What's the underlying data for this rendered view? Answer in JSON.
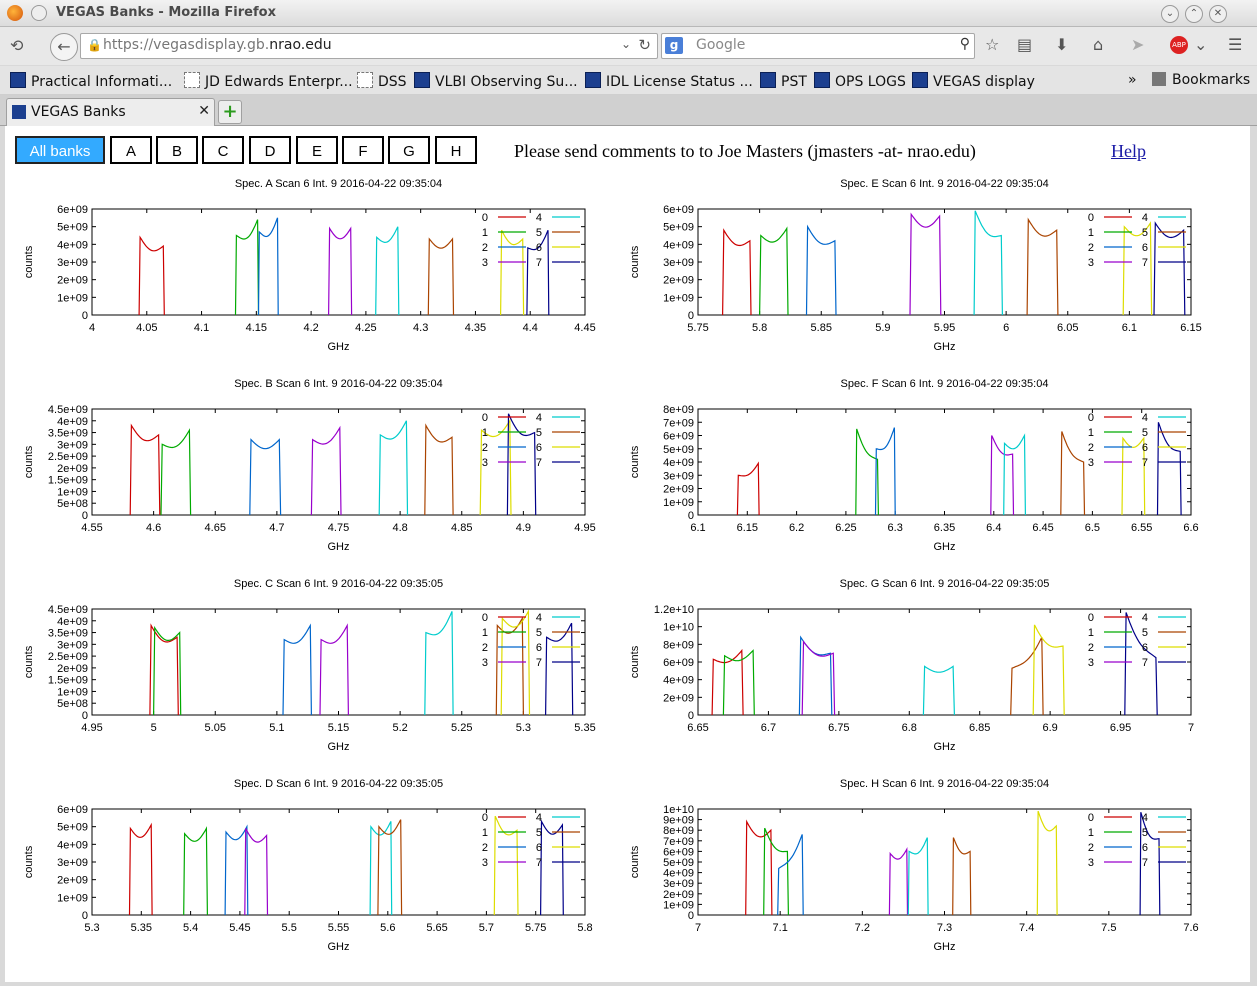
{
  "window": {
    "title": "VEGAS Banks - Mozilla Firefox"
  },
  "navbar": {
    "url_prefix": "https://vegasdisplay.gb.",
    "url_domain": "nrao.edu",
    "search_placeholder": "Google"
  },
  "bookmarks": [
    {
      "label": "Practical Informati...",
      "icon": "nrao"
    },
    {
      "label": "JD Edwards Enterpr...",
      "icon": "blank"
    },
    {
      "label": "DSS",
      "icon": "blank"
    },
    {
      "label": "VLBI Observing Su...",
      "icon": "nrao"
    },
    {
      "label": "IDL License Status ...",
      "icon": "nrao"
    },
    {
      "label": "PST",
      "icon": "nrao"
    },
    {
      "label": "OPS LOGS",
      "icon": "nrao"
    },
    {
      "label": "VEGAS display",
      "icon": "nrao"
    }
  ],
  "bookmarks_overflow": "»",
  "bookmarks_menu": "Bookmarks",
  "tab": {
    "label": "VEGAS Banks"
  },
  "bank_buttons": [
    "All banks",
    "A",
    "B",
    "C",
    "D",
    "E",
    "F",
    "G",
    "H"
  ],
  "active_bank": "All banks",
  "comments": "Please send comments to to Joe Masters (jmasters -at- nrao.edu)",
  "help_label": "Help",
  "colors": [
    "#cc0000",
    "#00aa00",
    "#0066cc",
    "#9900cc",
    "#00cccc",
    "#aa4400",
    "#dddd00",
    "#000088"
  ],
  "chart_data": [
    {
      "type": "line",
      "title": "Spec. A Scan 6 Int. 9   2016-04-22 09:35:04",
      "xlabel": "GHz",
      "ylabel": "counts",
      "xlim": [
        4.0,
        4.45
      ],
      "ylim": [
        0,
        6000000000.0
      ],
      "xticks": [
        "4",
        "4.05",
        "4.1",
        "4.15",
        "4.2",
        "4.25",
        "4.3",
        "4.35",
        "4.4",
        "4.45"
      ],
      "yticks": [
        "0",
        "1e+09",
        "2e+09",
        "3e+09",
        "4e+09",
        "5e+09",
        "6e+09"
      ],
      "legend": [
        "0",
        "1",
        "2",
        "3",
        "4",
        "5",
        "6",
        "7"
      ],
      "series": [
        {
          "name": "0",
          "start": 4.043,
          "end": 4.066,
          "lvl_start": 4400000000.0,
          "lvl_end": 3900000000.0
        },
        {
          "name": "1",
          "start": 4.131,
          "end": 4.152,
          "lvl_start": 4500000000.0,
          "lvl_end": 5400000000.0
        },
        {
          "name": "2",
          "start": 4.152,
          "end": 4.17,
          "lvl_start": 4700000000.0,
          "lvl_end": 5500000000.0
        },
        {
          "name": "3",
          "start": 4.216,
          "end": 4.237,
          "lvl_start": 4900000000.0,
          "lvl_end": 4900000000.0
        },
        {
          "name": "4",
          "start": 4.259,
          "end": 4.28,
          "lvl_start": 4400000000.0,
          "lvl_end": 5000000000.0
        },
        {
          "name": "5",
          "start": 4.307,
          "end": 4.33,
          "lvl_start": 4300000000.0,
          "lvl_end": 4300000000.0
        },
        {
          "name": "6",
          "start": 4.373,
          "end": 4.394,
          "lvl_start": 4800000000.0,
          "lvl_end": 4300000000.0
        },
        {
          "name": "7",
          "start": 4.397,
          "end": 4.417,
          "lvl_start": 3800000000.0,
          "lvl_end": 4800000000.0
        }
      ]
    },
    {
      "type": "line",
      "title": "Spec. E Scan 6 Int. 9   2016-04-22 09:35:04",
      "xlabel": "GHz",
      "ylabel": "counts",
      "xlim": [
        5.75,
        6.15
      ],
      "ylim": [
        0,
        6000000000.0
      ],
      "xticks": [
        "5.75",
        "5.8",
        "5.85",
        "5.9",
        "5.95",
        "6",
        "6.05",
        "6.1",
        "6.15"
      ],
      "yticks": [
        "0",
        "1e+09",
        "2e+09",
        "3e+09",
        "4e+09",
        "5e+09",
        "6e+09"
      ],
      "legend": [
        "0",
        "1",
        "2",
        "3",
        "4",
        "5",
        "6",
        "7"
      ],
      "series": [
        {
          "name": "0",
          "start": 5.77,
          "end": 5.793,
          "lvl_start": 4800000000.0,
          "lvl_end": 4200000000.0
        },
        {
          "name": "1",
          "start": 5.8,
          "end": 5.823,
          "lvl_start": 4500000000.0,
          "lvl_end": 4900000000.0
        },
        {
          "name": "2",
          "start": 5.838,
          "end": 5.862,
          "lvl_start": 5000000000.0,
          "lvl_end": 4200000000.0
        },
        {
          "name": "3",
          "start": 5.922,
          "end": 5.947,
          "lvl_start": 5700000000.0,
          "lvl_end": 5600000000.0
        },
        {
          "name": "4",
          "start": 5.974,
          "end": 5.997,
          "lvl_start": 5900000000.0,
          "lvl_end": 4500000000.0
        },
        {
          "name": "5",
          "start": 6.017,
          "end": 6.042,
          "lvl_start": 5400000000.0,
          "lvl_end": 4800000000.0
        },
        {
          "name": "6",
          "start": 6.095,
          "end": 6.118,
          "lvl_start": 5000000000.0,
          "lvl_end": 5200000000.0
        },
        {
          "name": "7",
          "start": 6.12,
          "end": 6.145,
          "lvl_start": 5200000000.0,
          "lvl_end": 4800000000.0
        }
      ]
    },
    {
      "type": "line",
      "title": "Spec. B Scan 6 Int. 9   2016-04-22 09:35:04",
      "xlabel": "GHz",
      "ylabel": "counts",
      "xlim": [
        4.55,
        4.95
      ],
      "ylim": [
        0,
        4500000000.0
      ],
      "xticks": [
        "4.55",
        "4.6",
        "4.65",
        "4.7",
        "4.75",
        "4.8",
        "4.85",
        "4.9",
        "4.95"
      ],
      "yticks": [
        "0",
        "5e+08",
        "1e+09",
        "1.5e+09",
        "2e+09",
        "2.5e+09",
        "3e+09",
        "3.5e+09",
        "4e+09",
        "4.5e+09"
      ],
      "legend": [
        "0",
        "1",
        "2",
        "3",
        "4",
        "5",
        "6",
        "7"
      ],
      "series": [
        {
          "name": "0",
          "start": 4.581,
          "end": 4.605,
          "lvl_start": 3800000000.0,
          "lvl_end": 3400000000.0
        },
        {
          "name": "1",
          "start": 4.606,
          "end": 4.63,
          "lvl_start": 3000000000.0,
          "lvl_end": 3600000000.0
        },
        {
          "name": "2",
          "start": 4.678,
          "end": 4.703,
          "lvl_start": 3200000000.0,
          "lvl_end": 3200000000.0
        },
        {
          "name": "3",
          "start": 4.728,
          "end": 4.752,
          "lvl_start": 3200000000.0,
          "lvl_end": 3700000000.0
        },
        {
          "name": "4",
          "start": 4.783,
          "end": 4.806,
          "lvl_start": 3400000000.0,
          "lvl_end": 4000000000.0
        },
        {
          "name": "5",
          "start": 4.82,
          "end": 4.843,
          "lvl_start": 3800000000.0,
          "lvl_end": 3300000000.0
        },
        {
          "name": "6",
          "start": 4.865,
          "end": 4.89,
          "lvl_start": 3600000000.0,
          "lvl_end": 4000000000.0
        },
        {
          "name": "7",
          "start": 4.887,
          "end": 4.91,
          "lvl_start": 4300000000.0,
          "lvl_end": 3500000000.0
        }
      ]
    },
    {
      "type": "line",
      "title": "Spec. F Scan 6 Int. 9   2016-04-22 09:35:04",
      "xlabel": "GHz",
      "ylabel": "counts",
      "xlim": [
        6.1,
        6.6
      ],
      "ylim": [
        0,
        8000000000.0
      ],
      "xticks": [
        "6.1",
        "6.15",
        "6.2",
        "6.25",
        "6.3",
        "6.35",
        "6.4",
        "6.45",
        "6.5",
        "6.55",
        "6.6"
      ],
      "yticks": [
        "0",
        "1e+09",
        "2e+09",
        "3e+09",
        "4e+09",
        "5e+09",
        "6e+09",
        "7e+09",
        "8e+09"
      ],
      "legend": [
        "0",
        "1",
        "2",
        "3",
        "4",
        "5",
        "6",
        "7"
      ],
      "series": [
        {
          "name": "0",
          "start": 6.14,
          "end": 6.162,
          "lvl_start": 3000000000.0,
          "lvl_end": 3900000000.0
        },
        {
          "name": "1",
          "start": 6.26,
          "end": 6.283,
          "lvl_start": 6500000000.0,
          "lvl_end": 4200000000.0
        },
        {
          "name": "2",
          "start": 6.28,
          "end": 6.3,
          "lvl_start": 5000000000.0,
          "lvl_end": 6600000000.0
        },
        {
          "name": "3",
          "start": 6.397,
          "end": 6.42,
          "lvl_start": 6000000000.0,
          "lvl_end": 4600000000.0
        },
        {
          "name": "4",
          "start": 6.41,
          "end": 6.432,
          "lvl_start": 5400000000.0,
          "lvl_end": 6000000000.0
        },
        {
          "name": "5",
          "start": 6.468,
          "end": 6.492,
          "lvl_start": 6300000000.0,
          "lvl_end": 4000000000.0
        },
        {
          "name": "6",
          "start": 6.53,
          "end": 6.553,
          "lvl_start": 5800000000.0,
          "lvl_end": 5800000000.0
        },
        {
          "name": "7",
          "start": 6.566,
          "end": 6.59,
          "lvl_start": 7000000000.0,
          "lvl_end": 4800000000.0
        }
      ]
    },
    {
      "type": "line",
      "title": "Spec. C Scan 6 Int. 9   2016-04-22 09:35:05",
      "xlabel": "GHz",
      "ylabel": "counts",
      "xlim": [
        4.95,
        5.35
      ],
      "ylim": [
        0,
        4500000000.0
      ],
      "xticks": [
        "4.95",
        "5",
        "5.05",
        "5.1",
        "5.15",
        "5.2",
        "5.25",
        "5.3",
        "5.35"
      ],
      "yticks": [
        "0",
        "5e+08",
        "1e+09",
        "1.5e+09",
        "2e+09",
        "2.5e+09",
        "3e+09",
        "3.5e+09",
        "4e+09",
        "4.5e+09"
      ],
      "legend": [
        "0",
        "1",
        "2",
        "3",
        "4",
        "5",
        "6",
        "7"
      ],
      "series": [
        {
          "name": "0",
          "start": 4.997,
          "end": 5.02,
          "lvl_start": 3800000000.0,
          "lvl_end": 3300000000.0
        },
        {
          "name": "1",
          "start": 5.0,
          "end": 5.022,
          "lvl_start": 3700000000.0,
          "lvl_end": 3500000000.0
        },
        {
          "name": "2",
          "start": 5.105,
          "end": 5.128,
          "lvl_start": 3200000000.0,
          "lvl_end": 3800000000.0
        },
        {
          "name": "3",
          "start": 5.135,
          "end": 5.158,
          "lvl_start": 3200000000.0,
          "lvl_end": 3800000000.0
        },
        {
          "name": "4",
          "start": 5.22,
          "end": 5.243,
          "lvl_start": 3500000000.0,
          "lvl_end": 4400000000.0
        },
        {
          "name": "5",
          "start": 5.278,
          "end": 5.3,
          "lvl_start": 3800000000.0,
          "lvl_end": 4100000000.0
        },
        {
          "name": "6",
          "start": 5.282,
          "end": 5.305,
          "lvl_start": 4100000000.0,
          "lvl_end": 4400000000.0
        },
        {
          "name": "7",
          "start": 5.318,
          "end": 5.34,
          "lvl_start": 3300000000.0,
          "lvl_end": 3900000000.0
        }
      ]
    },
    {
      "type": "line",
      "title": "Spec. G Scan 6 Int. 9   2016-04-22 09:35:05",
      "xlabel": "GHz",
      "ylabel": "counts",
      "xlim": [
        6.65,
        7.0
      ],
      "ylim": [
        0,
        12000000000.0
      ],
      "xticks": [
        "6.65",
        "6.7",
        "6.75",
        "6.8",
        "6.85",
        "6.9",
        "6.95",
        "7"
      ],
      "yticks": [
        "0",
        "2e+09",
        "4e+09",
        "6e+09",
        "8e+09",
        "1e+10",
        "1.2e+10"
      ],
      "legend": [
        "0",
        "1",
        "2",
        "3",
        "4",
        "5",
        "6",
        "7"
      ],
      "series": [
        {
          "name": "0",
          "start": 6.66,
          "end": 6.682,
          "lvl_start": 6300000000.0,
          "lvl_end": 7300000000.0
        },
        {
          "name": "1",
          "start": 6.668,
          "end": 6.69,
          "lvl_start": 6700000000.0,
          "lvl_end": 7300000000.0
        },
        {
          "name": "2",
          "start": 6.722,
          "end": 6.745,
          "lvl_start": 8800000000.0,
          "lvl_end": 7000000000.0
        },
        {
          "name": "3",
          "start": 6.724,
          "end": 6.747,
          "lvl_start": 8300000000.0,
          "lvl_end": 7000000000.0
        },
        {
          "name": "4",
          "start": 6.81,
          "end": 6.832,
          "lvl_start": 5500000000.0,
          "lvl_end": 5500000000.0
        },
        {
          "name": "5",
          "start": 6.872,
          "end": 6.895,
          "lvl_start": 5300000000.0,
          "lvl_end": 8800000000.0
        },
        {
          "name": "6",
          "start": 6.888,
          "end": 6.91,
          "lvl_start": 10200000000.0,
          "lvl_end": 7800000000.0
        },
        {
          "name": "7",
          "start": 6.953,
          "end": 6.976,
          "lvl_start": 11600000000.0,
          "lvl_end": 6500000000.0
        }
      ]
    },
    {
      "type": "line",
      "title": "Spec. D Scan 6 Int. 9   2016-04-22 09:35:05",
      "xlabel": "GHz",
      "ylabel": "counts",
      "xlim": [
        5.3,
        5.8
      ],
      "ylim": [
        0,
        6000000000.0
      ],
      "xticks": [
        "5.3",
        "5.35",
        "5.4",
        "5.45",
        "5.5",
        "5.55",
        "5.6",
        "5.65",
        "5.7",
        "5.75",
        "5.8"
      ],
      "yticks": [
        "0",
        "1e+09",
        "2e+09",
        "3e+09",
        "4e+09",
        "5e+09",
        "6e+09"
      ],
      "legend": [
        "0",
        "1",
        "2",
        "3",
        "4",
        "5",
        "6",
        "7"
      ],
      "series": [
        {
          "name": "0",
          "start": 5.338,
          "end": 5.361,
          "lvl_start": 4900000000.0,
          "lvl_end": 5100000000.0
        },
        {
          "name": "1",
          "start": 5.393,
          "end": 5.417,
          "lvl_start": 4600000000.0,
          "lvl_end": 4900000000.0
        },
        {
          "name": "2",
          "start": 5.435,
          "end": 5.458,
          "lvl_start": 4700000000.0,
          "lvl_end": 5000000000.0
        },
        {
          "name": "3",
          "start": 5.455,
          "end": 5.478,
          "lvl_start": 4900000000.0,
          "lvl_end": 4500000000.0
        },
        {
          "name": "4",
          "start": 5.582,
          "end": 5.604,
          "lvl_start": 5000000000.0,
          "lvl_end": 5300000000.0
        },
        {
          "name": "5",
          "start": 5.59,
          "end": 5.614,
          "lvl_start": 5000000000.0,
          "lvl_end": 5400000000.0
        },
        {
          "name": "6",
          "start": 5.708,
          "end": 5.732,
          "lvl_start": 5600000000.0,
          "lvl_end": 4800000000.0
        },
        {
          "name": "7",
          "start": 5.755,
          "end": 5.778,
          "lvl_start": 5300000000.0,
          "lvl_end": 5100000000.0
        }
      ]
    },
    {
      "type": "line",
      "title": "Spec. H Scan 6 Int. 9   2016-04-22 09:35:04",
      "xlabel": "GHz",
      "ylabel": "counts",
      "xlim": [
        7.0,
        7.6
      ],
      "ylim": [
        0,
        10000000000.0
      ],
      "xticks": [
        "7",
        "7.1",
        "7.2",
        "7.3",
        "7.4",
        "7.5",
        "7.6"
      ],
      "yticks": [
        "0",
        "1e+09",
        "2e+09",
        "3e+09",
        "4e+09",
        "5e+09",
        "6e+09",
        "7e+09",
        "8e+09",
        "9e+09",
        "1e+10"
      ],
      "legend": [
        "0",
        "1",
        "2",
        "3",
        "4",
        "5",
        "6",
        "7"
      ],
      "series": [
        {
          "name": "0",
          "start": 7.058,
          "end": 7.09,
          "lvl_start": 8800000000.0,
          "lvl_end": 8000000000.0
        },
        {
          "name": "1",
          "start": 7.08,
          "end": 7.11,
          "lvl_start": 8200000000.0,
          "lvl_end": 6000000000.0
        },
        {
          "name": "2",
          "start": 7.097,
          "end": 7.128,
          "lvl_start": 4400000000.0,
          "lvl_end": 7600000000.0
        },
        {
          "name": "3",
          "start": 7.233,
          "end": 7.255,
          "lvl_start": 5800000000.0,
          "lvl_end": 6200000000.0
        },
        {
          "name": "4",
          "start": 7.256,
          "end": 7.28,
          "lvl_start": 6000000000.0,
          "lvl_end": 7300000000.0
        },
        {
          "name": "5",
          "start": 7.31,
          "end": 7.332,
          "lvl_start": 7300000000.0,
          "lvl_end": 6000000000.0
        },
        {
          "name": "6",
          "start": 7.413,
          "end": 7.437,
          "lvl_start": 9800000000.0,
          "lvl_end": 8400000000.0
        },
        {
          "name": "7",
          "start": 7.538,
          "end": 7.562,
          "lvl_start": 9700000000.0,
          "lvl_end": 7200000000.0
        }
      ]
    }
  ]
}
